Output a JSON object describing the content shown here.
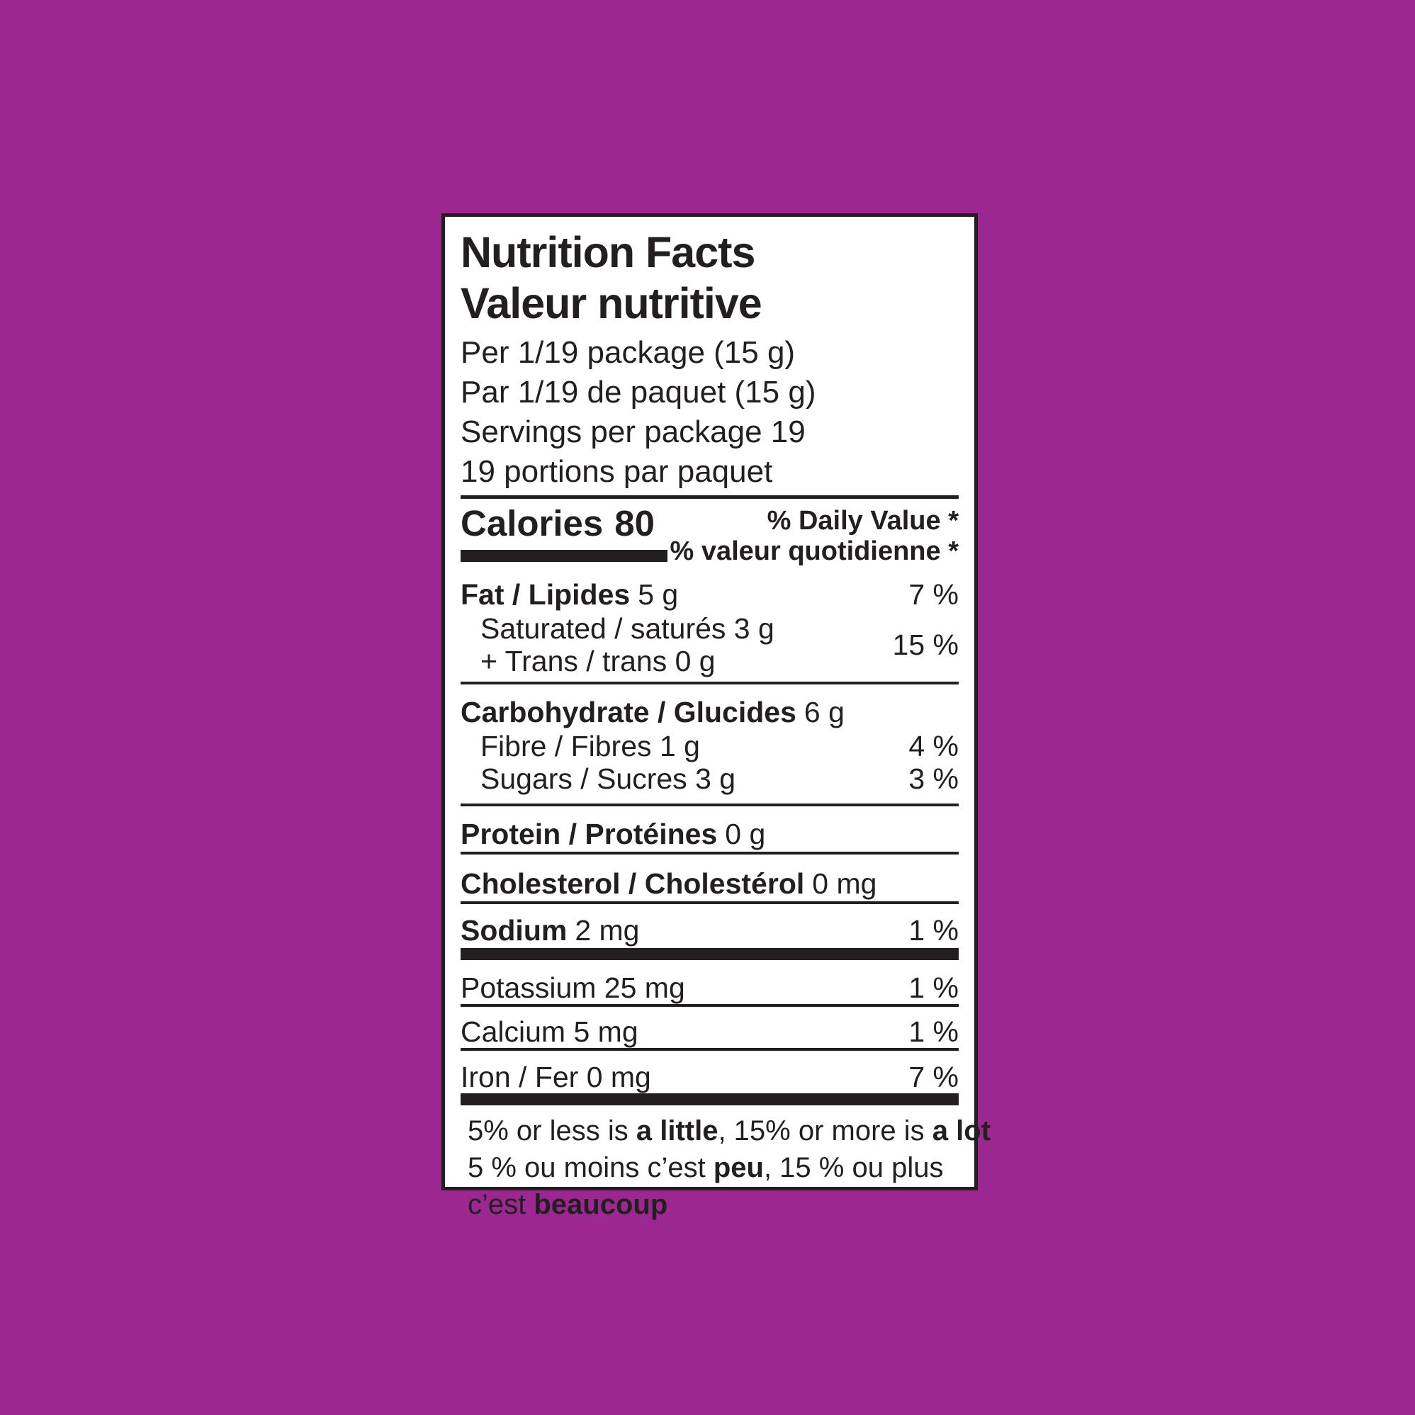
{
  "background_color": "#9C2791",
  "label": {
    "title_en": "Nutrition Facts",
    "title_fr": "Valeur nutritive",
    "serving_lines": [
      "Per 1/19 package (15 g)",
      "Par 1/19 de paquet (15 g)",
      "Servings per package 19",
      "19 portions par paquet"
    ],
    "calories": {
      "label": "Calories",
      "value": "80"
    },
    "dv_header_en": "% Daily Value *",
    "dv_header_fr": "% valeur quotidienne *",
    "nutrients": {
      "fat": {
        "name": "Fat / Lipides",
        "amount": "5 g",
        "dv": "7 %"
      },
      "saturated": {
        "line1": "Saturated / saturés 3 g",
        "line2": "+ Trans / trans 0 g",
        "dv": "15 %"
      },
      "carbohydrate": {
        "name": "Carbohydrate / Glucides",
        "amount": "6 g"
      },
      "fibre": {
        "name": "Fibre / Fibres 1 g",
        "dv": "4 %"
      },
      "sugars": {
        "name": "Sugars / Sucres 3 g",
        "dv": "3 %"
      },
      "protein": {
        "name": "Protein / Protéines",
        "amount": "0 g"
      },
      "cholesterol": {
        "name": "Cholesterol / Cholestérol",
        "amount": "0 mg"
      },
      "sodium": {
        "name": "Sodium",
        "amount": "2 mg",
        "dv": "1 %"
      },
      "potassium": {
        "name": "Potassium 25 mg",
        "dv": "1 %"
      },
      "calcium": {
        "name": "Calcium 5 mg",
        "dv": "1 %"
      },
      "iron": {
        "name": "Iron / Fer 0 mg",
        "dv": "7 %"
      }
    },
    "footer": {
      "en": [
        "5% or less is ",
        "a little",
        ", 15% or more is ",
        "a lot"
      ],
      "fr1": [
        "5 % ou moins c’est ",
        "peu",
        ", 15 % ou plus"
      ],
      "fr2": [
        "c’est ",
        "beaucoup"
      ]
    }
  }
}
